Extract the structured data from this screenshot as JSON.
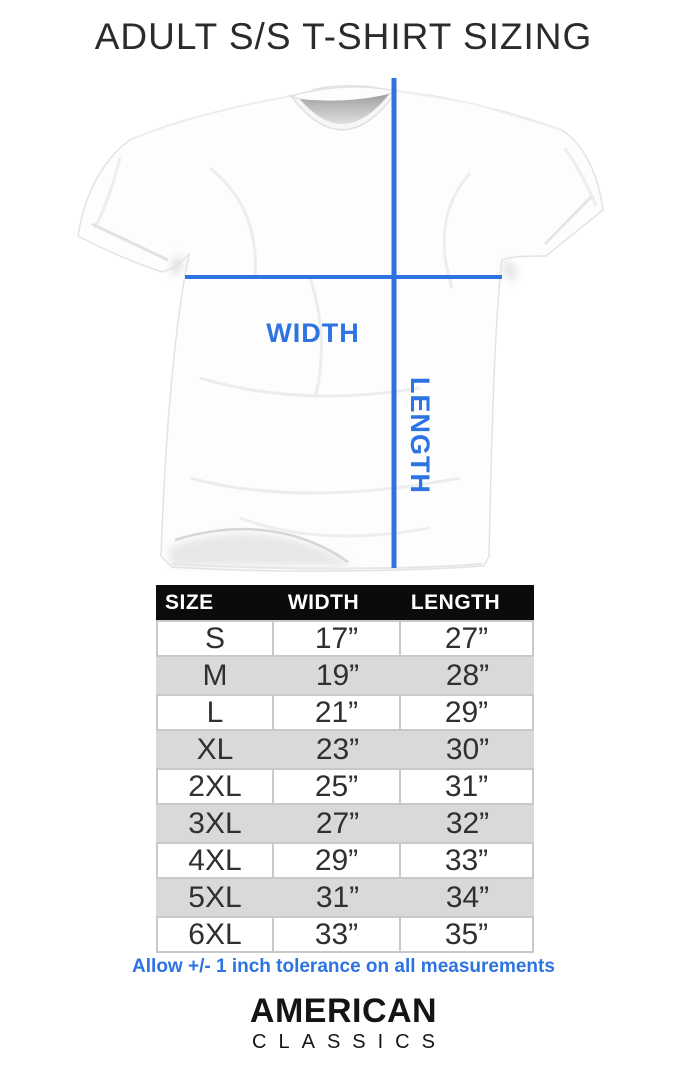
{
  "title": "ADULT S/S T-SHIRT SIZING",
  "diagram": {
    "width_label": "WIDTH",
    "length_label": "LENGTH"
  },
  "table": {
    "headers": [
      "SIZE",
      "WIDTH",
      "LENGTH"
    ],
    "rows": [
      {
        "size": "S",
        "width": "17”",
        "length": "27”"
      },
      {
        "size": "M",
        "width": "19”",
        "length": "28”"
      },
      {
        "size": "L",
        "width": "21”",
        "length": "29”"
      },
      {
        "size": "XL",
        "width": "23”",
        "length": "30”"
      },
      {
        "size": "2XL",
        "width": "25”",
        "length": "31”"
      },
      {
        "size": "3XL",
        "width": "27”",
        "length": "32”"
      },
      {
        "size": "4XL",
        "width": "29”",
        "length": "33”"
      },
      {
        "size": "5XL",
        "width": "31”",
        "length": "34”"
      },
      {
        "size": "6XL",
        "width": "33”",
        "length": "35”"
      }
    ]
  },
  "tolerance_note": "Allow +/- 1 inch tolerance on all measurements",
  "brand": {
    "name": "AMERICAN",
    "subname": "CLASSICS"
  },
  "colors": {
    "accent_blue": "#2d73e2",
    "table_header_bg": "#0b0b0b",
    "row_alt_gray": "#d9d9d9",
    "row_border": "#c9c9c9"
  },
  "chart_data": {
    "type": "table",
    "title": "ADULT S/S T-SHIRT SIZING",
    "columns": [
      "SIZE",
      "WIDTH",
      "LENGTH"
    ],
    "units": "inches",
    "rows": [
      [
        "S",
        17,
        27
      ],
      [
        "M",
        19,
        28
      ],
      [
        "L",
        21,
        29
      ],
      [
        "XL",
        23,
        30
      ],
      [
        "2XL",
        25,
        31
      ],
      [
        "3XL",
        27,
        32
      ],
      [
        "4XL",
        29,
        33
      ],
      [
        "5XL",
        31,
        34
      ],
      [
        "6XL",
        33,
        35
      ]
    ],
    "note": "Allow +/- 1 inch tolerance on all measurements"
  }
}
